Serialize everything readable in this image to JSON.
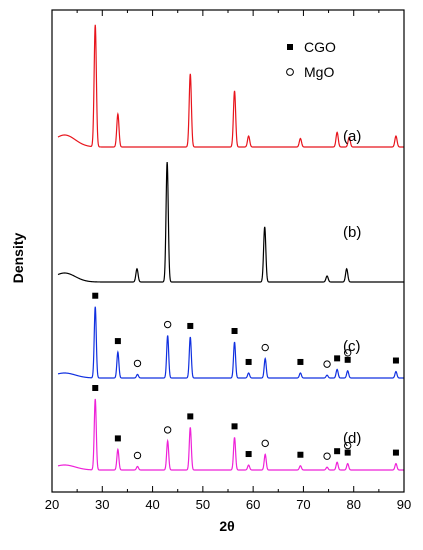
{
  "chart_data": {
    "type": "line",
    "xlabel": "2θ",
    "ylabel": "Density",
    "xlim": [
      20,
      90
    ],
    "xticks": [
      20,
      30,
      40,
      50,
      60,
      70,
      80,
      90
    ],
    "legend": {
      "placement": "top-right",
      "entries": [
        {
          "label": "CGO",
          "marker": "filled-square"
        },
        {
          "label": "MgO",
          "marker": "open-circle"
        }
      ]
    },
    "series": [
      {
        "label": "(a)",
        "color": "#e8141c",
        "peaks": [
          [
            28.6,
            1.0
          ],
          [
            33.1,
            0.27
          ],
          [
            47.5,
            0.6
          ],
          [
            56.3,
            0.46
          ],
          [
            59.1,
            0.09
          ],
          [
            69.4,
            0.07
          ],
          [
            76.7,
            0.12
          ],
          [
            79.1,
            0.08
          ],
          [
            88.4,
            0.09
          ]
        ],
        "cgo_markers": [],
        "mgo_markers": []
      },
      {
        "label": "(b)",
        "color": "#000000",
        "peaks": [
          [
            36.9,
            0.11
          ],
          [
            42.9,
            1.0
          ],
          [
            62.3,
            0.46
          ],
          [
            74.7,
            0.05
          ],
          [
            78.6,
            0.11
          ]
        ],
        "cgo_markers": [],
        "mgo_markers": []
      },
      {
        "label": "(c)",
        "color": "#1030e0",
        "peaks": [
          [
            28.6,
            0.99
          ],
          [
            33.1,
            0.36
          ],
          [
            37.0,
            0.05
          ],
          [
            43.0,
            0.59
          ],
          [
            47.5,
            0.57
          ],
          [
            56.3,
            0.5
          ],
          [
            59.1,
            0.07
          ],
          [
            62.4,
            0.27
          ],
          [
            69.4,
            0.07
          ],
          [
            74.7,
            0.04
          ],
          [
            76.7,
            0.12
          ],
          [
            78.8,
            0.1
          ],
          [
            88.4,
            0.09
          ]
        ],
        "cgo_markers": [
          28.6,
          33.1,
          47.5,
          56.3,
          59.1,
          69.4,
          76.7,
          78.8,
          88.4
        ],
        "mgo_markers": [
          37.0,
          43.0,
          62.4,
          74.7,
          78.8
        ]
      },
      {
        "label": "(d)",
        "color": "#ee22d8",
        "peaks": [
          [
            28.6,
            1.0
          ],
          [
            33.1,
            0.29
          ],
          [
            37.0,
            0.05
          ],
          [
            43.0,
            0.41
          ],
          [
            47.5,
            0.6
          ],
          [
            56.3,
            0.46
          ],
          [
            59.1,
            0.07
          ],
          [
            62.4,
            0.22
          ],
          [
            69.4,
            0.06
          ],
          [
            74.7,
            0.04
          ],
          [
            76.7,
            0.11
          ],
          [
            78.8,
            0.09
          ],
          [
            88.4,
            0.09
          ]
        ],
        "cgo_markers": [
          28.6,
          33.1,
          47.5,
          56.3,
          59.1,
          69.4,
          76.7,
          78.8,
          88.4
        ],
        "mgo_markers": [
          37.0,
          43.0,
          62.4,
          74.7,
          78.8
        ]
      }
    ]
  }
}
